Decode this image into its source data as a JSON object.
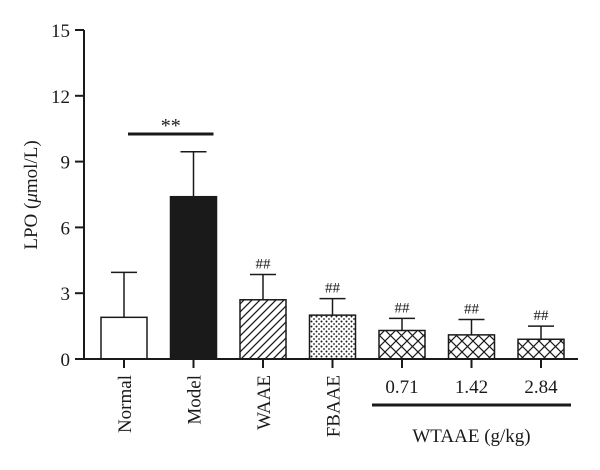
{
  "chart_data": {
    "type": "bar",
    "title": "",
    "ylabel_prefix": "LPO (",
    "ylabel_mu": "μ",
    "ylabel_suffix": "mol/L)",
    "xlabel": "",
    "ylim": [
      0,
      15
    ],
    "yticks": [
      "0",
      "3",
      "6",
      "9",
      "12",
      "15"
    ],
    "categories": [
      "Normal",
      "Model",
      "WAAE",
      "FBAAE",
      "0.71",
      "1.42",
      "2.84"
    ],
    "rotated_labels": [
      "Normal",
      "Model",
      "WAAE",
      "FBAAE"
    ],
    "dose_labels": [
      "0.71",
      "1.42",
      "2.84"
    ],
    "values": [
      1.9,
      7.4,
      2.7,
      2.0,
      1.3,
      1.1,
      0.9
    ],
    "errors": [
      2.05,
      2.05,
      1.15,
      0.75,
      0.55,
      0.7,
      0.6
    ],
    "fills": [
      "white",
      "black",
      "diagonal",
      "dots",
      "crosshatch",
      "crosshatch",
      "crosshatch"
    ],
    "annotations": [
      "",
      "",
      "##",
      "##",
      "##",
      "##",
      "##"
    ],
    "significance": {
      "label": "**",
      "between": [
        "Normal",
        "Model"
      ]
    },
    "group_label": "WTAAE (g/kg)",
    "colors": {
      "bar_stroke": "#1a1a1a",
      "model_fill": "#1a1a1a",
      "background": "#ffffff"
    }
  }
}
